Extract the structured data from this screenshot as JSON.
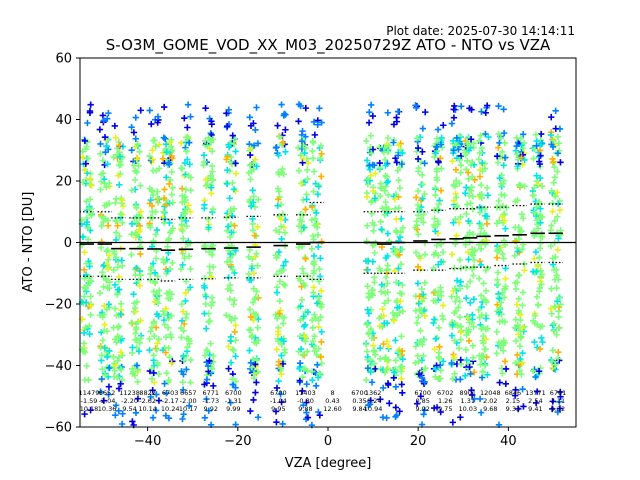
{
  "plot_date": "Plot date: 2025-07-30 14:14:11",
  "chart_data": {
    "type": "scatter",
    "title": "S-O3M_GOME_VOD_XX_M03_20250729Z ATO - NTO vs VZA",
    "xlabel": "VZA [degree]",
    "ylabel": "ATO - NTO [DU]",
    "xlim": [
      -55,
      55
    ],
    "ylim": [
      -60,
      60
    ],
    "xticks": [
      -40,
      -20,
      0,
      20,
      40
    ],
    "yticks": [
      -60,
      -40,
      -20,
      0,
      20,
      40,
      60
    ],
    "grid": false,
    "marker": "+",
    "bin_centers": [
      -53.5,
      -49.5,
      -46.5,
      -42.5,
      -38.5,
      -35.5,
      -31.5,
      -26.5,
      -21.5,
      -16.5,
      -10.5,
      -5.5,
      -2.5,
      9.5,
      12.5,
      15.5,
      20.5,
      24.5,
      28.5,
      31.5,
      34.5,
      38.5,
      42.5,
      46.5,
      50.5
    ],
    "mean": [
      -0.5,
      -0.5,
      -2.0,
      -2.0,
      -2.1,
      -2.5,
      -2.2,
      -2.0,
      -1.8,
      -1.5,
      -1.0,
      -0.5,
      0.0,
      0.0,
      -0.5,
      0.0,
      0.5,
      1.0,
      1.2,
      1.5,
      2.0,
      2.2,
      2.5,
      3.0,
      3.0
    ],
    "std_upper": [
      10.0,
      10.0,
      8.0,
      8.0,
      8.0,
      7.5,
      8.0,
      8.0,
      8.2,
      8.5,
      9.0,
      9.0,
      13.0,
      10.0,
      10.0,
      10.0,
      10.0,
      10.5,
      11.0,
      11.0,
      11.5,
      11.5,
      12.0,
      12.5,
      12.5
    ],
    "std_lower": [
      -11.0,
      -11.0,
      -12.0,
      -12.0,
      -12.0,
      -12.5,
      -12.0,
      -11.8,
      -11.5,
      -11.5,
      -11.0,
      -11.0,
      -12.0,
      -10.0,
      -10.0,
      -10.0,
      -9.0,
      -9.0,
      -8.5,
      -8.0,
      -8.0,
      -7.5,
      -7.0,
      -6.5,
      -6.5
    ],
    "annotations": [
      {
        "x": -53,
        "lines": [
          "11479",
          "-1.59",
          "10.18"
        ]
      },
      {
        "x": -49,
        "lines": [
          "6652",
          "-2.04",
          "10.36"
        ]
      },
      {
        "x": -44,
        "lines": [
          "11238",
          "-2.20",
          "9.54"
        ]
      },
      {
        "x": -40,
        "lines": [
          "8822",
          "-2.62",
          "10.14"
        ]
      },
      {
        "x": -35,
        "lines": [
          "6703",
          "-2.17",
          "10.24"
        ]
      },
      {
        "x": -31,
        "lines": [
          "6657",
          "-2.00",
          "10.17"
        ]
      },
      {
        "x": -26,
        "lines": [
          "6771",
          "-1.73",
          "9.92"
        ]
      },
      {
        "x": -21,
        "lines": [
          "6700",
          "-1.31",
          "9.99"
        ]
      },
      {
        "x": -11,
        "lines": [
          "6700",
          "-1.04",
          "9.95"
        ]
      },
      {
        "x": -5,
        "lines": [
          "11403",
          "-0.80",
          "9.88"
        ]
      },
      {
        "x": 1,
        "lines": [
          "8",
          "0.43",
          "12.60"
        ]
      },
      {
        "x": 7,
        "lines": [
          "6700",
          "0.35",
          "9.84"
        ]
      },
      {
        "x": 10,
        "lines": [
          "1362",
          "-0.24",
          "10.94"
        ]
      },
      {
        "x": 21,
        "lines": [
          "6700",
          "0.85",
          "9.92"
        ]
      },
      {
        "x": 26,
        "lines": [
          "6702",
          "1.26",
          "9.75"
        ]
      },
      {
        "x": 31,
        "lines": [
          "8901",
          "1.31",
          "10.03"
        ]
      },
      {
        "x": 36,
        "lines": [
          "12048",
          "2.02",
          "9.68"
        ]
      },
      {
        "x": 41,
        "lines": [
          "6846",
          "2.15",
          "9.33"
        ]
      },
      {
        "x": 46,
        "lines": [
          "13771",
          "2.54",
          "9.41"
        ]
      },
      {
        "x": 51,
        "lines": [
          "6701",
          "3.11",
          "9.32"
        ]
      }
    ],
    "colors": {
      "bulk": "#7eff79",
      "mid": "#00e5e5",
      "cyan": "#1ee4e4",
      "blue": "#0080ff",
      "navy": "#0000e0",
      "yellow": "#e8f020",
      "orange": "#ffb000",
      "line": "#000000"
    }
  }
}
